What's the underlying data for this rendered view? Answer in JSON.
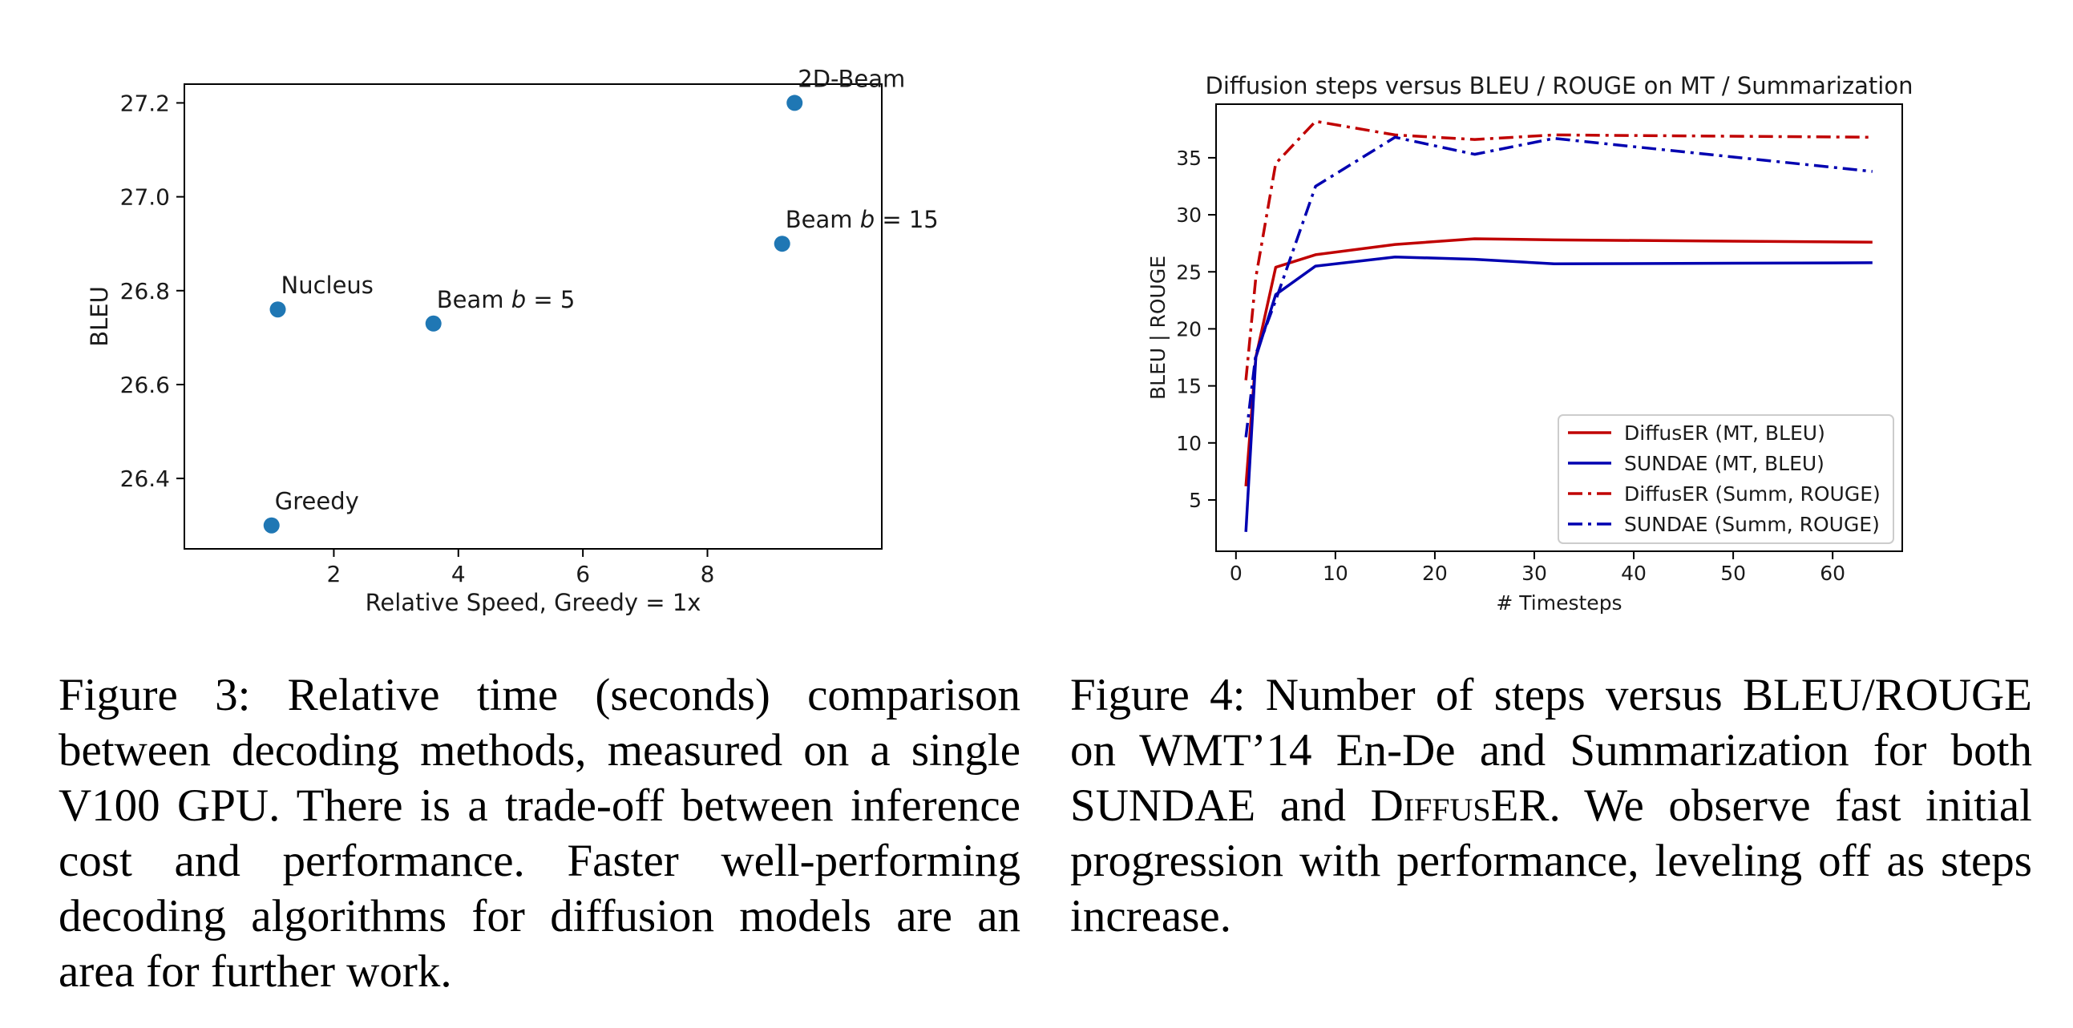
{
  "chart_data": [
    {
      "type": "scatter",
      "title": "",
      "xlabel": "Relative Speed, Greedy = 1x",
      "ylabel": "BLEU",
      "xlim": [
        -0.4,
        10.8
      ],
      "ylim": [
        26.25,
        27.24
      ],
      "xticks": [
        "2",
        "4",
        "6",
        "8"
      ],
      "yticks": [
        "26.4",
        "26.6",
        "26.8",
        "27.0",
        "27.2"
      ],
      "grid": false,
      "color": "#1f77b4",
      "points": [
        {
          "label": "Greedy",
          "x": 1.0,
          "y": 26.3
        },
        {
          "label": "Nucleus",
          "x": 1.1,
          "y": 26.76
        },
        {
          "label": "Beam b = 5",
          "x": 3.6,
          "y": 26.73
        },
        {
          "label": "Beam b = 15",
          "x": 9.2,
          "y": 26.9
        },
        {
          "label": "2D-Beam",
          "x": 9.4,
          "y": 27.2
        }
      ]
    },
    {
      "type": "line",
      "title": "Diffusion steps versus BLEU / ROUGE on MT / Summarization",
      "xlabel": "# Timesteps",
      "ylabel": "BLEU | ROUGE",
      "xlim": [
        -2,
        67
      ],
      "ylim": [
        0.5,
        39.7
      ],
      "xticks": [
        "0",
        "10",
        "20",
        "30",
        "40",
        "50",
        "60"
      ],
      "yticks": [
        "5",
        "10",
        "15",
        "20",
        "25",
        "30",
        "35"
      ],
      "grid": false,
      "legend_position": "bottom-right",
      "series": [
        {
          "name": "DiffusER (MT, BLEU)",
          "color": "#c00000",
          "style": "solid",
          "x": [
            1,
            2,
            4,
            8,
            16,
            24,
            32,
            64
          ],
          "y": [
            6.2,
            17.5,
            25.4,
            26.5,
            27.4,
            27.9,
            27.8,
            27.6
          ]
        },
        {
          "name": "SUNDAE (MT, BLEU)",
          "color": "#0000b0",
          "style": "solid",
          "x": [
            1,
            2,
            4,
            8,
            16,
            24,
            32,
            64
          ],
          "y": [
            2.2,
            17.5,
            23.0,
            25.5,
            26.3,
            26.1,
            25.7,
            25.8
          ]
        },
        {
          "name": "DiffusER (Summ, ROUGE)",
          "color": "#c00000",
          "style": "dashdot",
          "x": [
            1,
            2,
            4,
            8,
            16,
            24,
            32,
            64
          ],
          "y": [
            15.5,
            24.5,
            34.5,
            38.2,
            37.0,
            36.6,
            37.0,
            36.8
          ]
        },
        {
          "name": "SUNDAE (Summ, ROUGE)",
          "color": "#0000b0",
          "style": "dashdot",
          "x": [
            1,
            2,
            4,
            8,
            16,
            24,
            32,
            64
          ],
          "y": [
            10.5,
            17.8,
            22.5,
            32.5,
            36.8,
            35.3,
            36.7,
            33.8
          ]
        }
      ]
    }
  ],
  "captions": {
    "fig3": "Figure 3: Relative time (seconds) comparison between decoding methods, measured on a single V100 GPU. There is a trade-off between inference cost and performance. Faster well-performing decoding algorithms for diffusion models are an area for further work.",
    "fig4_pre": "Figure 4: Number of steps versus BLEU/ROUGE on WMT’14 En-De and Summarization for both SUNDAE and ",
    "fig4_name": "DiffusER",
    "fig4_post": ". We observe fast initial progression with performance, leveling off as steps increase."
  }
}
